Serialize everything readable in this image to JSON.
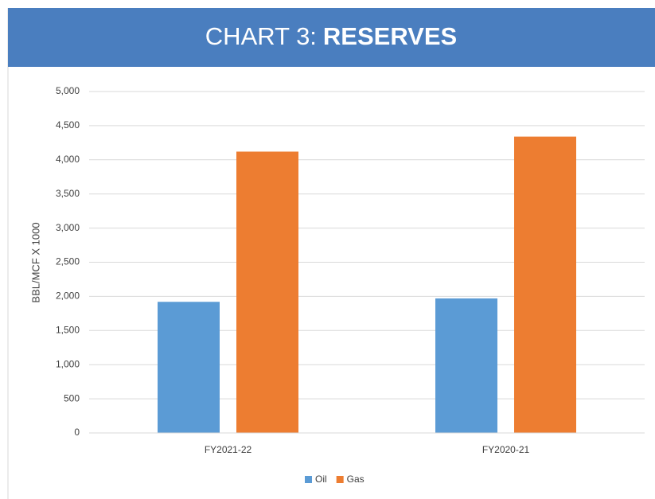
{
  "chart_data": {
    "type": "bar",
    "title": [
      "CHART 3:",
      "RESERVES"
    ],
    "y_label": "BBL/MCF X 1000",
    "categories": [
      "FY2021-22",
      "FY2020-21"
    ],
    "series": [
      {
        "name": "Oil",
        "color": "#5b9bd5",
        "values": [
          1920,
          1970
        ]
      },
      {
        "name": "Gas",
        "color": "#ed7d31",
        "values": [
          4120,
          4340
        ]
      }
    ],
    "ylim": [
      0,
      5000
    ],
    "yticks": [
      0,
      500,
      {
        "value": 1000,
        "label": "1,000"
      },
      {
        "value": 1500,
        "label": "1,500"
      },
      {
        "value": 2000,
        "label": "2,000"
      },
      {
        "value": 2500,
        "label": "2,500"
      },
      {
        "value": 3000,
        "label": "3,000"
      },
      {
        "value": 3500,
        "label": "3,500"
      },
      {
        "value": 4000,
        "label": "4,000"
      },
      {
        "value": 4500,
        "label": "4,500"
      },
      {
        "value": 5000,
        "label": "5,000"
      }
    ],
    "grid": true,
    "legend": "bottom",
    "banner_color": "#4a7ebf"
  }
}
